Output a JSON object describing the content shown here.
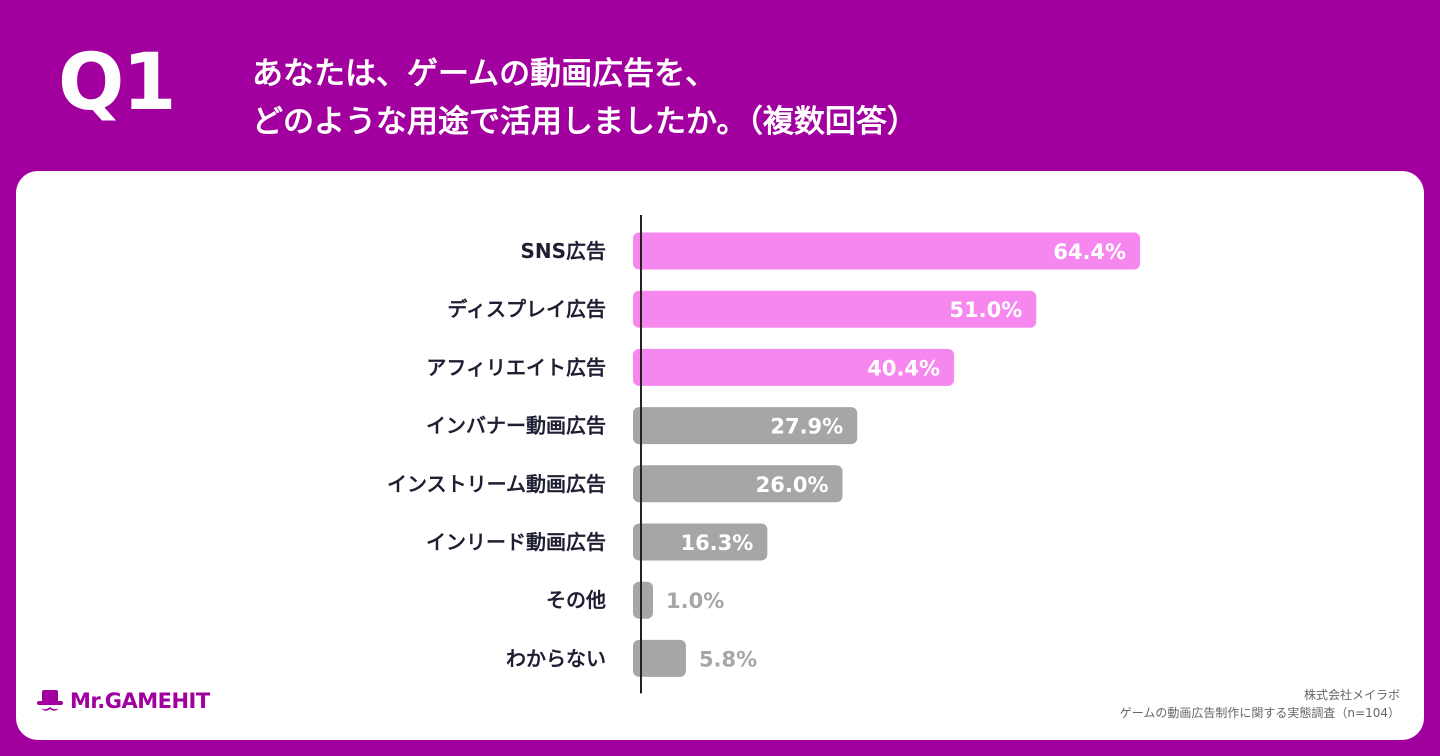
{
  "question": {
    "number": "Q1",
    "line1": "あなたは、ゲームの動画広告を、",
    "line2": "どのような用途で活用しましたか。（複数回答）"
  },
  "colors": {
    "background": "#a2009e",
    "highlight_bar": "#f587ee",
    "normal_bar": "#a6a6a6",
    "axis": "#222222"
  },
  "chart_data": {
    "type": "bar",
    "orientation": "horizontal",
    "categories": [
      "SNS広告",
      "ディスプレイ広告",
      "アフィリエイト広告",
      "インバナー動画広告",
      "インストリーム動画広告",
      "インリード動画広告",
      "その他",
      "わからない"
    ],
    "values": [
      64.4,
      51.0,
      40.4,
      27.9,
      26.0,
      16.3,
      1.0,
      5.8
    ],
    "value_labels": [
      "64.4%",
      "51.0%",
      "40.4%",
      "27.9%",
      "26.0%",
      "16.3%",
      "1.0%",
      "5.8%"
    ],
    "highlighted": [
      true,
      true,
      true,
      false,
      false,
      false,
      false,
      false
    ],
    "xlim": [
      0,
      100
    ],
    "grid": false
  },
  "logo": {
    "text": "Mr.GAMEHIT",
    "icon": "mascot-hat-icon"
  },
  "source": {
    "company": "株式会社メイラボ",
    "survey": "ゲームの動画広告制作に関する実態調査（n=104）"
  }
}
